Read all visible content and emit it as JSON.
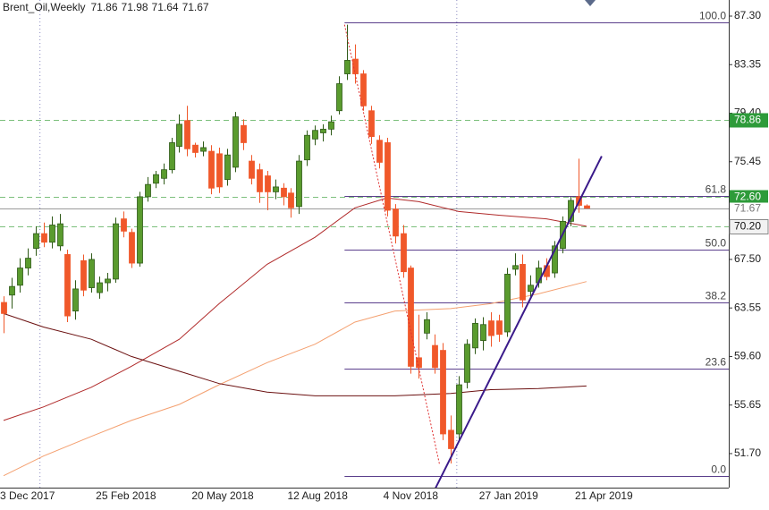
{
  "chart_data": {
    "type": "candlestick",
    "title": "Brent_Oil,Weekly",
    "categories": [
      "3 Dec 2017",
      null,
      null,
      null,
      null,
      null,
      null,
      null,
      null,
      null,
      null,
      null,
      "25 Feb 2018",
      null,
      null,
      null,
      null,
      null,
      null,
      null,
      null,
      null,
      null,
      null,
      "20 May 2018",
      null,
      null,
      null,
      null,
      null,
      null,
      null,
      null,
      null,
      null,
      null,
      "12 Aug 2018",
      null,
      null,
      null,
      null,
      null,
      null,
      null,
      null,
      null,
      null,
      null,
      "4 Nov 2018",
      null,
      null,
      null,
      null,
      null,
      null,
      null,
      null,
      null,
      null,
      null,
      "27 Jan 2019",
      null,
      null,
      null,
      null,
      null,
      null,
      null,
      null,
      null,
      null,
      null,
      "21 Apr 2019",
      null
    ],
    "open": [
      64.0,
      64.6,
      65.4,
      66.8,
      68.4,
      69.6,
      68.9,
      68.6,
      67.9,
      63.3,
      67.4,
      65.2,
      64.8,
      65.6,
      65.9,
      70.8,
      69.7,
      67.2,
      72.6,
      73.7,
      74.1,
      74.8,
      76.7,
      78.8,
      76.8,
      76.3,
      76.3,
      76.1,
      74.0,
      75.0,
      78.4,
      75.5,
      74.8,
      74.3,
      73.0,
      73.3,
      72.9,
      71.8,
      75.6,
      77.3,
      77.8,
      78.1,
      79.6,
      82.6,
      83.8,
      82.6,
      79.6,
      77.2,
      77.0,
      71.6,
      69.6,
      66.8,
      59.5,
      61.5,
      60.5,
      60.1,
      53.6,
      53.3,
      57.5,
      60.3,
      60.9,
      62.5,
      62.5,
      61.6,
      66.7,
      67.1,
      64.9,
      65.6,
      67.0,
      66.4,
      68.4,
      70.6,
      72.6,
      71.86
    ],
    "high": [
      64.5,
      66.0,
      67.6,
      68.4,
      70.2,
      70.5,
      71.0,
      71.2,
      68.3,
      65.8,
      67.9,
      68.0,
      66.1,
      66.4,
      70.9,
      71.4,
      70.0,
      73.0,
      74.2,
      74.7,
      75.3,
      77.4,
      79.3,
      80.0,
      77.0,
      77.1,
      76.8,
      76.6,
      76.5,
      79.5,
      78.9,
      76.0,
      75.3,
      74.7,
      74.0,
      73.7,
      73.3,
      76.0,
      78.0,
      78.4,
      78.5,
      79.2,
      82.4,
      86.6,
      85.0,
      82.9,
      80.0,
      77.6,
      77.4,
      72.0,
      70.3,
      67.0,
      63.0,
      63.2,
      61.4,
      60.7,
      54.8,
      58.0,
      61.0,
      62.7,
      62.8,
      63.2,
      63.0,
      66.8,
      68.0,
      67.9,
      66.2,
      67.4,
      67.6,
      69.0,
      71.0,
      72.6,
      75.7,
      71.98
    ],
    "low": [
      61.5,
      63.5,
      64.8,
      66.2,
      67.8,
      68.5,
      68.4,
      68.2,
      62.4,
      62.6,
      64.5,
      64.8,
      64.3,
      64.9,
      65.6,
      69.3,
      66.8,
      66.9,
      72.2,
      73.3,
      73.6,
      74.5,
      76.2,
      75.9,
      75.8,
      75.9,
      72.8,
      72.9,
      73.5,
      74.6,
      76.4,
      73.6,
      72.1,
      71.5,
      72.4,
      71.9,
      70.9,
      71.2,
      75.1,
      76.8,
      77.1,
      77.6,
      79.3,
      82.1,
      81.8,
      79.6,
      76.9,
      74.9,
      71.0,
      68.8,
      66.0,
      58.2,
      57.8,
      61.0,
      58.2,
      52.8,
      50.9,
      52.8,
      57.0,
      59.8,
      60.1,
      60.4,
      60.8,
      61.2,
      66.2,
      63.6,
      64.3,
      65.2,
      65.8,
      66.0,
      68.0,
      70.2,
      71.3,
      71.64
    ],
    "close": [
      63.1,
      65.3,
      66.8,
      67.6,
      69.6,
      68.9,
      70.3,
      70.4,
      62.9,
      65.1,
      65.0,
      67.5,
      65.6,
      65.9,
      70.4,
      69.8,
      67.2,
      72.6,
      73.6,
      74.4,
      74.8,
      77.0,
      78.5,
      76.5,
      76.2,
      76.6,
      73.3,
      73.4,
      76.0,
      79.1,
      77.0,
      74.1,
      73.0,
      73.0,
      73.4,
      72.6,
      71.7,
      75.5,
      77.6,
      78.0,
      78.1,
      78.7,
      81.8,
      83.7,
      82.6,
      80.0,
      77.5,
      75.4,
      71.5,
      69.4,
      66.5,
      58.8,
      58.7,
      62.6,
      58.7,
      53.3,
      52.1,
      57.3,
      60.6,
      62.3,
      62.2,
      61.3,
      61.4,
      66.3,
      67.0,
      64.2,
      65.4,
      66.8,
      66.1,
      68.6,
      70.6,
      72.3,
      71.9,
      71.67
    ],
    "up_color": "#5a9b2e",
    "down_color": "#f0582a",
    "ylim": [
      48.93,
      88.61
    ],
    "yticks": [
      {
        "value": 87.3,
        "label": "87.30"
      },
      83.35,
      {
        "value": 79.4,
        "label": "79.40"
      },
      75.45,
      {
        "value": 67.5,
        "label": "67.50"
      },
      63.55,
      {
        "value": 59.6,
        "label": "59.60"
      },
      55.65,
      {
        "value": 51.7,
        "label": "51.70"
      }
    ],
    "vgrid": [
      4.5,
      56.7
    ],
    "indicators": [
      {
        "color": "#b02a2a",
        "x": [
          0,
          5,
          11,
          16,
          22,
          27,
          33,
          39,
          44,
          48,
          52,
          57,
          62,
          68,
          73
        ],
        "values": [
          54.4,
          55.5,
          57.1,
          58.8,
          61.0,
          63.9,
          67.1,
          69.3,
          71.7,
          72.5,
          72.2,
          71.4,
          71.1,
          70.8,
          70.2
        ]
      },
      {
        "color": "#f4a070",
        "x": [
          0,
          5,
          11,
          16,
          22,
          27,
          33,
          39,
          44,
          49,
          56,
          61,
          67,
          73
        ],
        "values": [
          49.9,
          51.5,
          53.1,
          54.4,
          55.7,
          57.3,
          59.1,
          60.6,
          62.4,
          63.3,
          63.5,
          63.9,
          64.7,
          65.7
        ]
      },
      {
        "color": "#6b1010",
        "x": [
          0,
          5,
          11,
          16,
          22,
          27,
          33,
          39,
          44,
          49,
          56,
          61,
          67,
          73
        ],
        "values": [
          63.1,
          62.0,
          61.0,
          59.6,
          58.4,
          57.4,
          56.7,
          56.4,
          56.4,
          56.4,
          56.6,
          56.9,
          57.0,
          57.2
        ]
      }
    ],
    "fib": {
      "color": "#5b3f8c",
      "start_x": 42.7,
      "levels": [
        {
          "value": 100,
          "label": "100.0"
        },
        61.8,
        {
          "value": 50,
          "label": "50.0"
        },
        38.2,
        23.6,
        {
          "value": 0,
          "label": "0.0"
        }
      ],
      "prices": [
        86.79,
        72.67,
        68.3,
        64.0,
        58.62,
        49.88
      ]
    },
    "hlines": [
      78.86,
      {
        "value": 72.6,
        "label": "72.60"
      },
      {
        "value": 70.2,
        "label": "70.20"
      }
    ],
    "hline_color": "#7cc07c",
    "hline_fills": [
      "#2e9b3a",
      "#2e9b3a",
      "#f2f2f2"
    ],
    "trendline": {
      "color": "#3a1a8a",
      "x": [
        54.1,
        74.9
      ],
      "values": [
        48.9,
        75.9
      ]
    },
    "zigzag": {
      "color": "#e03030",
      "x": [
        42.7,
        54.6
      ],
      "values": [
        86.6,
        50.8
      ]
    }
  }
}
